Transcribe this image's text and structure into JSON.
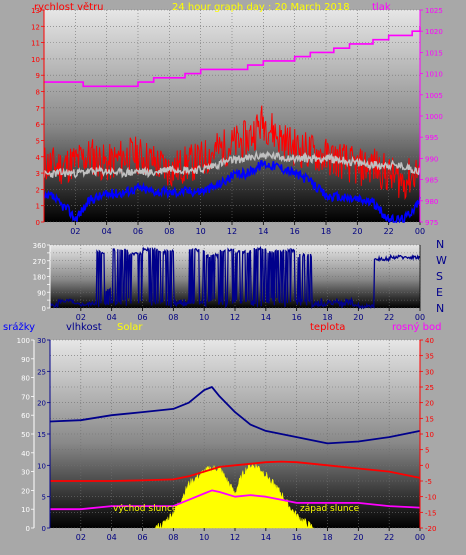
{
  "header": {
    "title": "24 hour graph day : 20 March 2018",
    "wind_label": "rychlost větru",
    "pressure_label": "tlak"
  },
  "footer_labels": {
    "rain": "srážky",
    "humidity": "vlhkost",
    "solar": "Solar",
    "temperature": "teplota",
    "dewpoint": "rosný bod",
    "sunrise": "východ slunce",
    "sunset": "západ slunce"
  },
  "compass": [
    "N",
    "W",
    "S",
    "E",
    "N"
  ],
  "colors": {
    "wind_speed": "#ff0000",
    "wind_avg": "#0000ff",
    "wind_gust": "#c0c0c0",
    "pressure": "#ff00ff",
    "direction": "#00008b",
    "humidity": "#00008b",
    "temperature": "#ff0000",
    "dewpoint": "#ff00ff",
    "solar": "#ffff00",
    "rain": "#0000ff"
  },
  "chart_data": [
    {
      "type": "line",
      "title": "24 hour graph day : 20 March 2018",
      "x_ticks": [
        "02",
        "04",
        "06",
        "08",
        "10",
        "12",
        "14",
        "16",
        "18",
        "20",
        "22",
        "00"
      ],
      "y_left": {
        "label": "rychlost větru",
        "range": [
          0,
          13
        ],
        "ticks": [
          0,
          1,
          2,
          3,
          4,
          5,
          6,
          7,
          8,
          9,
          10,
          11,
          12,
          13
        ]
      },
      "y_right": {
        "label": "tlak",
        "range": [
          975,
          1025
        ],
        "ticks": [
          975,
          980,
          985,
          990,
          995,
          1000,
          1005,
          1010,
          1015,
          1020,
          1025
        ]
      },
      "series": [
        {
          "name": "tlak",
          "axis": "right",
          "x": [
            0,
            1.5,
            2.5,
            4.5,
            6,
            7,
            9,
            10,
            10.5,
            13,
            14,
            16,
            17,
            18.5,
            19.5,
            21,
            22,
            23.5,
            24
          ],
          "y": [
            1008,
            1008,
            1007,
            1007,
            1008,
            1009,
            1010,
            1011,
            1011,
            1012,
            1013,
            1014,
            1015,
            1016,
            1017,
            1018,
            1019,
            1020,
            1021
          ]
        },
        {
          "name": "",
          "axis": "left",
          "x": [
            0,
            1,
            2,
            3,
            4,
            5,
            6,
            7,
            8,
            9,
            10,
            11,
            12,
            13,
            14,
            15,
            16,
            17,
            18,
            19,
            20,
            21,
            22,
            23,
            24
          ],
          "y": [
            3.6,
            3.4,
            3.7,
            4.1,
            3.5,
            4.0,
            4.1,
            3.7,
            3.2,
            3.5,
            3.8,
            4.4,
            4.7,
            5.1,
            6.2,
            5.2,
            4.6,
            4.3,
            4.0,
            3.8,
            3.3,
            3.5,
            2.9,
            2.5,
            3.3
          ]
        },
        {
          "name": "",
          "axis": "left",
          "x": [
            0,
            1,
            2,
            3,
            4,
            5,
            6,
            7,
            8,
            9,
            10,
            11,
            12,
            13,
            14,
            15,
            16,
            17,
            18,
            19,
            20,
            21,
            22,
            23,
            24
          ],
          "y": [
            2.9,
            3.0,
            3.0,
            3.1,
            3.1,
            3.0,
            3.1,
            3.0,
            3.3,
            3.2,
            3.2,
            3.5,
            3.8,
            3.9,
            4.1,
            4.0,
            3.9,
            3.9,
            3.9,
            3.8,
            3.6,
            3.5,
            3.5,
            3.4,
            3.1
          ]
        },
        {
          "name": "",
          "axis": "left",
          "x": [
            0,
            0.5,
            1,
            1.5,
            2,
            3,
            4,
            5,
            6,
            7,
            8,
            9,
            10,
            11,
            12,
            13,
            14,
            15,
            16,
            17,
            18,
            19,
            20,
            21,
            22,
            23,
            24
          ],
          "y": [
            1.4,
            1.6,
            1.1,
            0.8,
            0.2,
            1.4,
            1.7,
            1.8,
            2.1,
            1.9,
            1.8,
            1.9,
            1.9,
            2.2,
            2.8,
            3.0,
            3.6,
            3.4,
            3.0,
            2.5,
            1.6,
            1.5,
            1.4,
            1.2,
            0.1,
            0.2,
            1.3
          ]
        }
      ]
    },
    {
      "type": "line",
      "title": "",
      "x_ticks": [
        "02",
        "04",
        "06",
        "08",
        "10",
        "12",
        "14",
        "16",
        "18",
        "20",
        "22",
        "00"
      ],
      "y_left": {
        "label": "",
        "range": [
          0,
          360
        ],
        "ticks": [
          0,
          45,
          90,
          135,
          180,
          225,
          270,
          315,
          360
        ]
      },
      "series": [
        {
          "name": "",
          "x": [
            0,
            0.5,
            1.5,
            2.5,
            3,
            3.5,
            4,
            5,
            6,
            7,
            8,
            9,
            10,
            11,
            12,
            13,
            14,
            15,
            16,
            17,
            18,
            19,
            20,
            20.5,
            21,
            22,
            23,
            24
          ],
          "y": [
            15,
            40,
            20,
            25,
            320,
            100,
            330,
            310,
            335,
            320,
            20,
            330,
            300,
            330,
            320,
            335,
            320,
            330,
            300,
            20,
            30,
            20,
            5,
            10,
            280,
            290,
            290,
            300
          ]
        }
      ]
    },
    {
      "type": "line",
      "title": "",
      "x_ticks": [
        "02",
        "04",
        "06",
        "08",
        "10",
        "12",
        "14",
        "16",
        "18",
        "20",
        "22",
        "00"
      ],
      "y_rain": {
        "label": "srážky",
        "range": [
          0,
          100
        ],
        "ticks": [
          0,
          10,
          20,
          30,
          40,
          50,
          60,
          70,
          80,
          90,
          100
        ]
      },
      "y_hum": {
        "label": "vlhkost",
        "range": [
          0,
          30
        ],
        "ticks": [
          0,
          5,
          10,
          15,
          20,
          25,
          30
        ]
      },
      "y_right": {
        "label": "teplota",
        "range": [
          -20,
          40
        ],
        "ticks": [
          -20,
          -15,
          -10,
          -5,
          0,
          5,
          10,
          15,
          20,
          25,
          30,
          35,
          40
        ]
      },
      "series": [
        {
          "name": "vlhkost",
          "axis": "humidity",
          "x": [
            0,
            2,
            4,
            6,
            8,
            9,
            10,
            10.5,
            11,
            12,
            13,
            14,
            16,
            18,
            20,
            22,
            24
          ],
          "y": [
            17,
            17.2,
            18,
            18.5,
            19,
            20,
            22,
            22.5,
            21,
            18.5,
            16.5,
            15.5,
            14.5,
            13.5,
            13.8,
            14.5,
            15.5
          ]
        },
        {
          "name": "teplota",
          "axis": "right",
          "x": [
            0,
            2,
            4,
            6,
            8,
            9,
            10,
            11,
            12,
            13,
            14,
            15,
            16,
            18,
            20,
            22,
            24
          ],
          "y": [
            -5,
            -5,
            -5,
            -4.8,
            -4.5,
            -3.5,
            -2,
            -0.5,
            0,
            0.5,
            1,
            1.2,
            1,
            0,
            -1,
            -2,
            -4
          ]
        },
        {
          "name": "rosný bod",
          "axis": "right",
          "x": [
            0,
            2,
            4,
            6,
            8,
            9,
            10,
            10.5,
            11,
            12,
            13,
            14,
            15,
            16,
            17,
            18,
            20,
            22,
            24
          ],
          "y": [
            -14,
            -14,
            -13,
            -13,
            -13,
            -11,
            -9,
            -8,
            -8.5,
            -10,
            -9.5,
            -10,
            -11,
            -12,
            -12,
            -12,
            -12,
            -13,
            -13.5
          ]
        },
        {
          "name": "Solar",
          "axis": "right",
          "x": [
            6.8,
            7.3,
            8,
            8.5,
            9,
            9.5,
            10,
            10.5,
            11,
            11.5,
            12,
            12.3,
            12.6,
            13,
            13.5,
            14,
            14.5,
            15,
            15.5,
            16,
            16.5,
            17.1
          ],
          "y": [
            -20,
            -19,
            -15,
            -11,
            -6,
            -4,
            -2,
            -1,
            -1,
            -5,
            -9,
            -5,
            -2,
            0,
            -0.5,
            -3,
            -6,
            -9,
            -13,
            -16,
            -18,
            -20
          ]
        }
      ]
    }
  ]
}
